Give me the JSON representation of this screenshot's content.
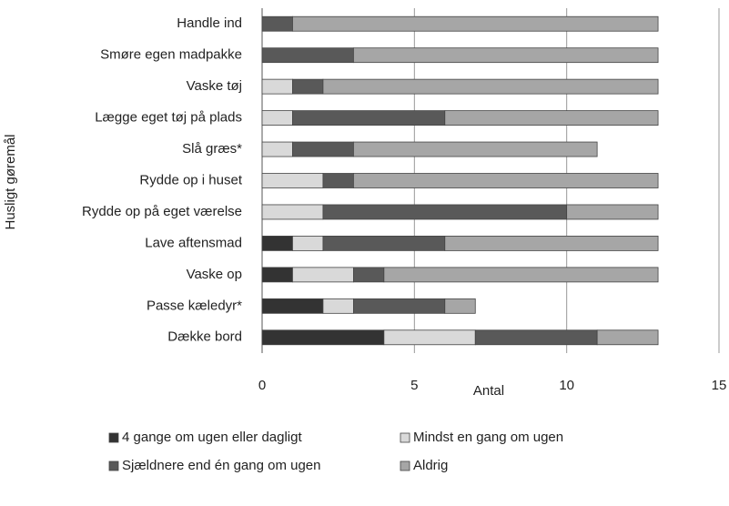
{
  "chart_data": {
    "type": "stacked_barh",
    "x_label": "Antal",
    "y_label": "Husligt gøremål",
    "categories": [
      "Handle ind",
      "Smøre egen madpakke",
      "Vaske tøj",
      "Lægge eget tøj på plads",
      "Slå græs*",
      "Rydde op i huset",
      "Rydde op på eget værelse",
      "Lave aftensmad",
      "Vaske op",
      "Passe kæledyr*",
      "Dække bord"
    ],
    "series": [
      {
        "name": "4 gange om ugen eller dagligt",
        "color": "#333333",
        "values": [
          0,
          0,
          0,
          0,
          0,
          0,
          0,
          1,
          1,
          2,
          4
        ]
      },
      {
        "name": "Mindst en gang om ugen",
        "color": "#d9d9d9",
        "values": [
          0,
          0,
          1,
          1,
          1,
          2,
          2,
          1,
          2,
          1,
          3
        ]
      },
      {
        "name": "Sjældnere end én gang om ugen",
        "color": "#595959",
        "values": [
          1,
          3,
          1,
          5,
          2,
          1,
          8,
          4,
          1,
          3,
          4
        ]
      },
      {
        "name": "Aldrig",
        "color": "#a6a6a6",
        "values": [
          12,
          10,
          11,
          7,
          8,
          10,
          3,
          7,
          9,
          1,
          2
        ]
      }
    ],
    "xlim": [
      0,
      15
    ],
    "xticks": [
      0,
      5,
      10,
      15
    ],
    "grid": true,
    "legend": "bottom"
  }
}
